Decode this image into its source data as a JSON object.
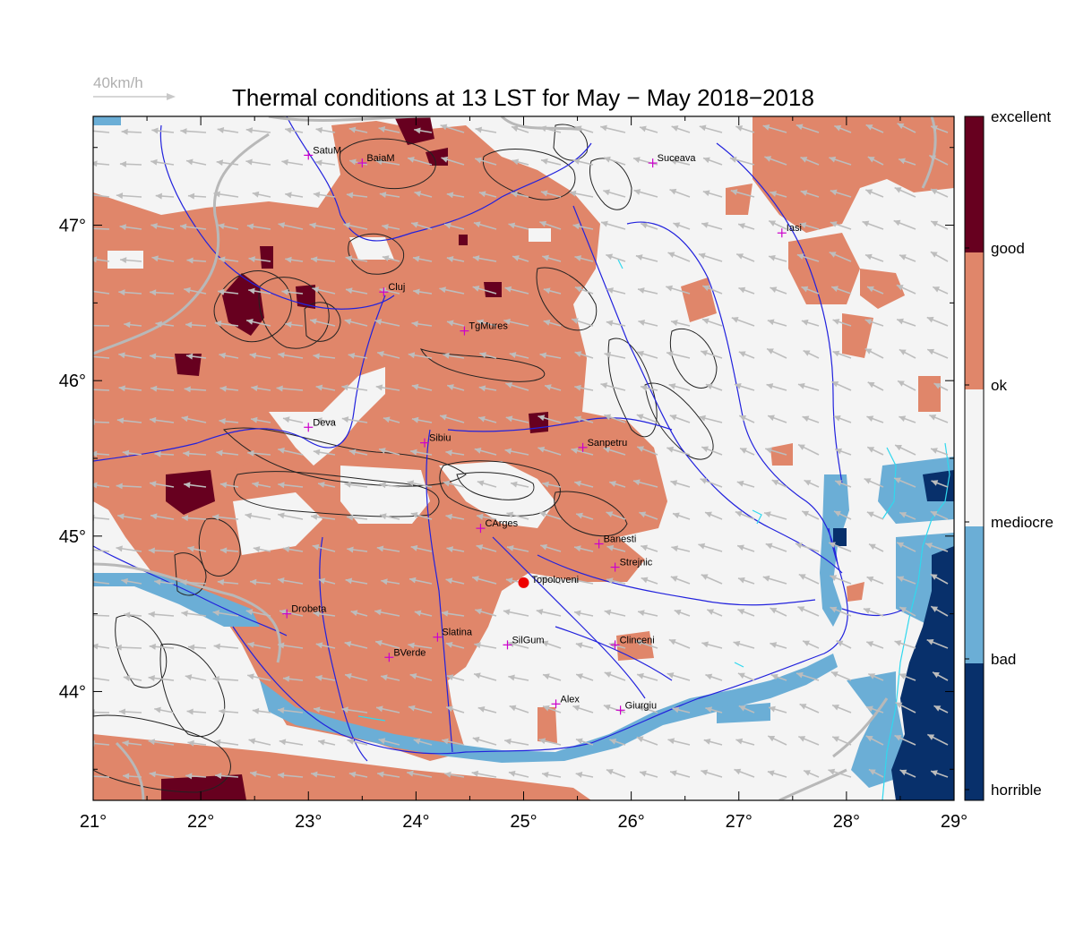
{
  "title": "Thermal conditions at 13 LST for May − May  2018−2018",
  "wind_scale": {
    "label": "40km/h"
  },
  "x_ticks": [
    {
      "value": 21,
      "label": "21°"
    },
    {
      "value": 22,
      "label": "22°"
    },
    {
      "value": 23,
      "label": "23°"
    },
    {
      "value": 24,
      "label": "24°"
    },
    {
      "value": 25,
      "label": "25°"
    },
    {
      "value": 26,
      "label": "26°"
    },
    {
      "value": 27,
      "label": "27°"
    },
    {
      "value": 28,
      "label": "28°"
    },
    {
      "value": 29,
      "label": "29°"
    }
  ],
  "y_ticks": [
    {
      "value": 44,
      "label": "44°"
    },
    {
      "value": 45,
      "label": "45°"
    },
    {
      "value": 46,
      "label": "46°"
    },
    {
      "value": 47,
      "label": "47°"
    }
  ],
  "extent": {
    "lon": [
      21,
      29
    ],
    "lat": [
      43.3,
      47.7
    ]
  },
  "legend": {
    "categories": [
      {
        "label": "excellent",
        "color": "#67001f"
      },
      {
        "label": "good",
        "color": "#e0866a"
      },
      {
        "label": "ok",
        "color": "#f4f4f4"
      },
      {
        "label": "mediocre",
        "color": "#f4f4f4"
      },
      {
        "label": "bad",
        "color": "#6baed6"
      },
      {
        "label": "horrible",
        "color": "#08306b"
      }
    ]
  },
  "colors": {
    "good": "#e0866a",
    "excellent": "#67001f",
    "ok": "#f4f4f4",
    "bad": "#6baed6",
    "horrible": "#08306b",
    "river": "#2222dd",
    "border": "#b8b8b8",
    "wind_arrow": "#bdbdbd",
    "city_marker": "#cc00cc",
    "highlight": "#ee0000"
  },
  "cities": [
    {
      "name": "SatuM",
      "lon": 23.0,
      "lat": 47.45
    },
    {
      "name": "BaiaM",
      "lon": 23.5,
      "lat": 47.4
    },
    {
      "name": "Suceava",
      "lon": 26.2,
      "lat": 47.4
    },
    {
      "name": "Iasi",
      "lon": 27.4,
      "lat": 46.95
    },
    {
      "name": "Cluj",
      "lon": 23.7,
      "lat": 46.57
    },
    {
      "name": "TgMures",
      "lon": 24.45,
      "lat": 46.32
    },
    {
      "name": "Deva",
      "lon": 23.0,
      "lat": 45.7
    },
    {
      "name": "Sibiu",
      "lon": 24.08,
      "lat": 45.6
    },
    {
      "name": "Sanpetru",
      "lon": 25.55,
      "lat": 45.57
    },
    {
      "name": "CArges",
      "lon": 24.6,
      "lat": 45.05
    },
    {
      "name": "Banesti",
      "lon": 25.7,
      "lat": 44.95
    },
    {
      "name": "Strejnic",
      "lon": 25.85,
      "lat": 44.8
    },
    {
      "name": "Drobeta",
      "lon": 22.8,
      "lat": 44.5
    },
    {
      "name": "Slatina",
      "lon": 24.2,
      "lat": 44.35
    },
    {
      "name": "SilGum",
      "lon": 24.85,
      "lat": 44.3
    },
    {
      "name": "Clinceni",
      "lon": 25.85,
      "lat": 44.3
    },
    {
      "name": "BVerde",
      "lon": 23.75,
      "lat": 44.22
    },
    {
      "name": "Alex",
      "lon": 25.3,
      "lat": 43.92
    },
    {
      "name": "Giurgiu",
      "lon": 25.9,
      "lat": 43.88
    }
  ],
  "highlight_site": {
    "name": "Topoloveni",
    "lon": 25.0,
    "lat": 44.7
  }
}
